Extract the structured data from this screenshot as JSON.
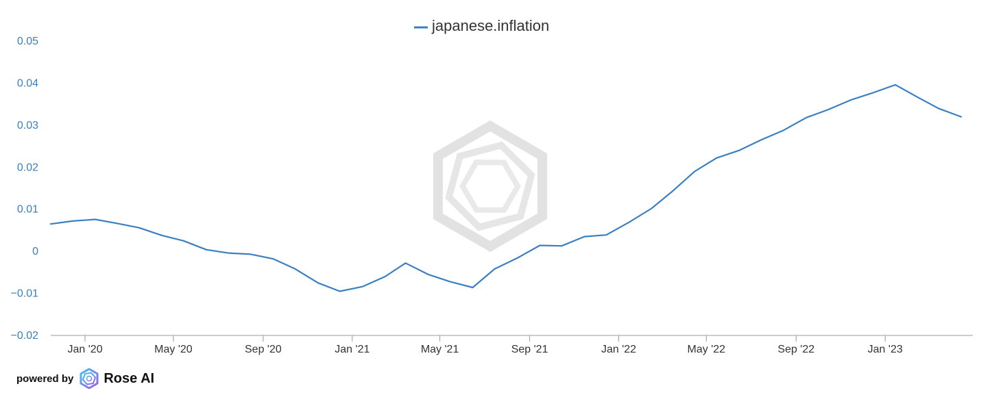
{
  "chart_data": {
    "type": "line",
    "title": "",
    "xlabel": "",
    "ylabel": "",
    "legend": {
      "position": "top-center",
      "entries": [
        "japanese.inflation"
      ]
    },
    "grid": false,
    "ylim": [
      -0.02,
      0.05
    ],
    "xlim": [
      "2019-11-15",
      "2023-05-01"
    ],
    "y_ticks": [
      0.05,
      0.04,
      0.03,
      0.02,
      0.01,
      0,
      -0.01,
      -0.02
    ],
    "y_tick_labels": [
      "0.05",
      "0.04",
      "0.03",
      "0.02",
      "0.01",
      "0",
      "−0.01",
      "−0.02"
    ],
    "x_ticks": [
      "2020-01-01",
      "2020-05-01",
      "2020-09-01",
      "2021-01-01",
      "2021-05-01",
      "2021-09-01",
      "2022-01-01",
      "2022-05-01",
      "2022-09-01",
      "2023-01-01"
    ],
    "x_tick_labels": [
      "Jan '20",
      "May '20",
      "Sep '20",
      "Jan '21",
      "May '21",
      "Sep '21",
      "Jan '22",
      "May '22",
      "Sep '22",
      "Jan '23"
    ],
    "series": [
      {
        "name": "japanese.inflation",
        "color": "#3a7fc1",
        "x": [
          "2019-11-15",
          "2019-12-15",
          "2020-01-15",
          "2020-02-15",
          "2020-03-15",
          "2020-04-15",
          "2020-05-15",
          "2020-06-15",
          "2020-07-15",
          "2020-08-15",
          "2020-09-15",
          "2020-10-15",
          "2020-11-15",
          "2020-12-15",
          "2021-01-15",
          "2021-02-15",
          "2021-03-15",
          "2021-04-15",
          "2021-05-15",
          "2021-06-15",
          "2021-07-15",
          "2021-08-15",
          "2021-09-15",
          "2021-10-15",
          "2021-11-15",
          "2021-12-15",
          "2022-01-15",
          "2022-02-15",
          "2022-03-15",
          "2022-04-15",
          "2022-05-15",
          "2022-06-15",
          "2022-07-15",
          "2022-08-15",
          "2022-09-15",
          "2022-10-15",
          "2022-11-15",
          "2022-12-15",
          "2023-01-15",
          "2023-02-15",
          "2023-03-15",
          "2023-04-15"
        ],
        "values": [
          0.0065,
          0.0072,
          0.0076,
          0.0066,
          0.0056,
          0.0038,
          0.0025,
          0.0004,
          -0.0004,
          -0.0007,
          -0.0018,
          -0.0042,
          -0.0075,
          -0.0095,
          -0.0084,
          -0.006,
          -0.0028,
          -0.0055,
          -0.0072,
          -0.0086,
          -0.0042,
          -0.0016,
          0.0014,
          0.0013,
          0.0035,
          0.0039,
          0.0069,
          0.0102,
          0.0142,
          0.019,
          0.0222,
          0.024,
          0.0265,
          0.0288,
          0.0318,
          0.0337,
          0.036,
          0.0377,
          0.0396,
          0.0366,
          0.034,
          0.032
        ]
      }
    ]
  },
  "branding": {
    "powered_by": "powered by",
    "name": "Rose AI",
    "colors": {
      "logo_gradient_start": "#3fc3f0",
      "logo_gradient_end": "#9b5cf0"
    }
  },
  "watermark": {
    "icon": "rose-ai-hexagon-logo",
    "color": "#e0e0e0"
  }
}
